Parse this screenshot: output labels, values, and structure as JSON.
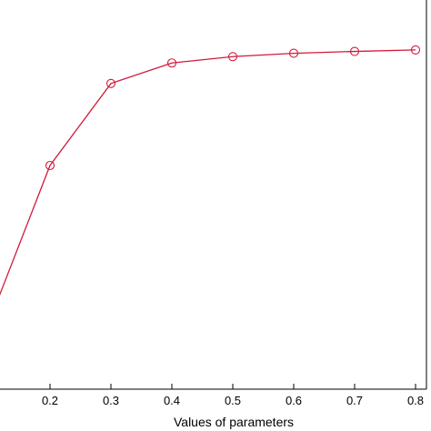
{
  "chart_data": {
    "type": "line",
    "title": "",
    "xlabel": "Values of parameters",
    "ylabel": "",
    "x_ticks": [
      "0.2",
      "0.3",
      "0.4",
      "0.5",
      "0.6",
      "0.7",
      "0.8"
    ],
    "xlim": [
      0.1,
      0.9
    ],
    "ylim": [
      0,
      1
    ],
    "grid": false,
    "series": [
      {
        "color": "#d11a3a",
        "marker": "circle-open",
        "x": [
          0.1,
          0.2,
          0.3,
          0.4,
          0.5,
          0.6,
          0.7,
          0.8
        ],
        "y": [
          0.18,
          0.6,
          0.82,
          0.875,
          0.892,
          0.901,
          0.906,
          0.91
        ]
      }
    ]
  }
}
